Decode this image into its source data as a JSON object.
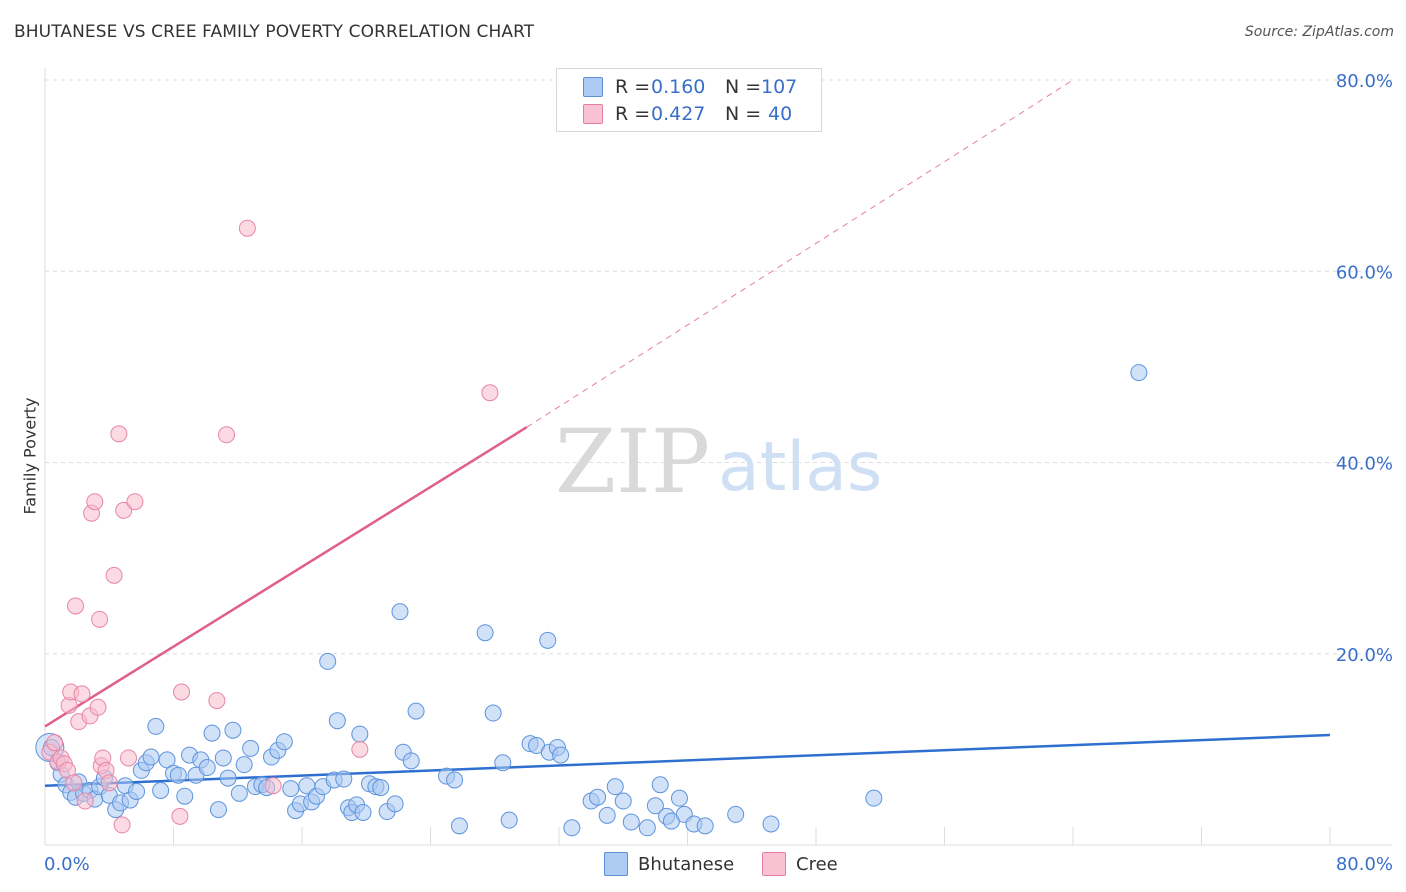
{
  "title": "BHUTANESE VS CREE FAMILY POVERTY CORRELATION CHART",
  "source": "Source: ZipAtlas.com",
  "watermark": {
    "zip": "ZIP",
    "atlas": "atlas"
  },
  "legend": {
    "rows": [
      {
        "r_label": "R =",
        "r_value": "0.160",
        "n_label": "N =",
        "n_value": "107",
        "color": "#aecbf3",
        "border": "#5b8fd6"
      },
      {
        "r_label": "R =",
        "r_value": "0.427",
        "n_label": "N =",
        "n_value": "40",
        "color": "#f8c2d2",
        "border": "#e47e9f"
      }
    ]
  },
  "bottom_legend": {
    "items": [
      "Bhutanese",
      "Cree"
    ]
  },
  "colors": {
    "bhutanese_fill": "#a9c8f2",
    "bhutanese_stroke": "#5e94dd",
    "bhutanese_line": "#2f6fd0",
    "cree_fill": "#f7bccd",
    "cree_stroke": "#e786a6",
    "cree_line": "#e0608a",
    "axis_text": "#3a6fc9",
    "grid": "#dddddd"
  },
  "chart_data": {
    "type": "scatter",
    "title": "BHUTANESE VS CREE FAMILY POVERTY CORRELATION CHART",
    "xlabel": "",
    "ylabel": "Family Poverty",
    "xlim": [
      0,
      80
    ],
    "ylim": [
      0,
      80
    ],
    "grid": true,
    "legend_position": "top-center",
    "x_tick_labels": [
      "0.0%",
      "80.0%"
    ],
    "y_tick_labels": [
      "20.0%",
      "40.0%",
      "60.0%",
      "80.0%"
    ],
    "y_ticks": [
      20,
      40,
      60,
      80
    ],
    "series": [
      {
        "name": "Bhutanese",
        "r": 0.16,
        "n": 107,
        "trend": {
          "x": [
            0,
            80
          ],
          "y": [
            6.2,
            11.5
          ]
        },
        "points": [
          [
            0.4,
            10.2
          ],
          [
            0.8,
            8.6
          ],
          [
            1.0,
            7.4
          ],
          [
            1.3,
            6.3
          ],
          [
            1.6,
            5.5
          ],
          [
            1.9,
            5.0
          ],
          [
            2.1,
            6.6
          ],
          [
            2.4,
            5.4
          ],
          [
            2.8,
            5.7
          ],
          [
            3.1,
            4.8
          ],
          [
            3.4,
            6.1
          ],
          [
            3.7,
            7.0
          ],
          [
            4.0,
            5.2
          ],
          [
            4.4,
            3.7
          ],
          [
            4.7,
            4.4
          ],
          [
            5.0,
            6.2
          ],
          [
            5.3,
            4.7
          ],
          [
            5.7,
            5.6
          ],
          [
            6.0,
            7.8
          ],
          [
            6.3,
            8.6
          ],
          [
            6.6,
            9.2
          ],
          [
            6.9,
            12.4
          ],
          [
            7.2,
            5.7
          ],
          [
            7.6,
            8.9
          ],
          [
            8.0,
            7.5
          ],
          [
            8.3,
            7.3
          ],
          [
            8.7,
            5.1
          ],
          [
            9.0,
            9.4
          ],
          [
            9.4,
            7.3
          ],
          [
            9.7,
            8.9
          ],
          [
            10.1,
            8.1
          ],
          [
            10.4,
            11.7
          ],
          [
            10.8,
            3.7
          ],
          [
            11.1,
            9.1
          ],
          [
            11.4,
            7.0
          ],
          [
            11.7,
            12.0
          ],
          [
            12.1,
            5.4
          ],
          [
            12.4,
            8.4
          ],
          [
            12.8,
            10.1
          ],
          [
            13.1,
            6.1
          ],
          [
            13.5,
            6.3
          ],
          [
            13.8,
            6.0
          ],
          [
            14.1,
            9.2
          ],
          [
            14.5,
            9.9
          ],
          [
            14.9,
            10.8
          ],
          [
            15.3,
            5.9
          ],
          [
            15.6,
            3.6
          ],
          [
            15.9,
            4.3
          ],
          [
            16.3,
            6.2
          ],
          [
            16.6,
            4.5
          ],
          [
            16.9,
            5.1
          ],
          [
            17.3,
            6.1
          ],
          [
            17.6,
            19.2
          ],
          [
            18.0,
            6.8
          ],
          [
            18.2,
            13.0
          ],
          [
            18.6,
            6.9
          ],
          [
            18.9,
            3.9
          ],
          [
            19.1,
            3.4
          ],
          [
            19.4,
            4.2
          ],
          [
            19.6,
            11.6
          ],
          [
            19.8,
            3.4
          ],
          [
            20.2,
            6.4
          ],
          [
            20.6,
            6.1
          ],
          [
            20.9,
            6.0
          ],
          [
            21.3,
            3.5
          ],
          [
            21.8,
            4.3
          ],
          [
            22.1,
            24.4
          ],
          [
            22.3,
            9.7
          ],
          [
            22.8,
            8.8
          ],
          [
            23.1,
            14.0
          ],
          [
            25.0,
            7.2
          ],
          [
            25.5,
            6.8
          ],
          [
            25.8,
            2.0
          ],
          [
            27.4,
            22.2
          ],
          [
            27.9,
            13.8
          ],
          [
            28.5,
            8.6
          ],
          [
            28.9,
            2.6
          ],
          [
            30.2,
            10.6
          ],
          [
            30.6,
            10.4
          ],
          [
            31.3,
            21.4
          ],
          [
            31.4,
            9.7
          ],
          [
            31.9,
            10.2
          ],
          [
            32.1,
            9.4
          ],
          [
            32.8,
            1.8
          ],
          [
            34.0,
            4.6
          ],
          [
            34.4,
            5.0
          ],
          [
            35.0,
            3.1
          ],
          [
            35.5,
            6.1
          ],
          [
            36.0,
            4.6
          ],
          [
            36.5,
            2.4
          ],
          [
            37.5,
            1.8
          ],
          [
            38.0,
            4.1
          ],
          [
            38.3,
            6.3
          ],
          [
            38.7,
            3.0
          ],
          [
            39.0,
            2.5
          ],
          [
            39.5,
            4.9
          ],
          [
            39.8,
            3.2
          ],
          [
            40.4,
            2.2
          ],
          [
            41.1,
            2.0
          ],
          [
            43.0,
            3.2
          ],
          [
            45.2,
            2.2
          ],
          [
            51.6,
            4.9
          ],
          [
            68.1,
            49.4
          ]
        ]
      },
      {
        "name": "Cree",
        "r": 0.427,
        "n": 40,
        "trend": {
          "x": [
            0,
            30
          ],
          "y": [
            12.4,
            43.7
          ]
        },
        "trend_dashed": {
          "x": [
            30,
            64
          ],
          "y": [
            43.7,
            80.0
          ]
        },
        "points": [
          [
            0.3,
            9.7
          ],
          [
            0.6,
            10.7
          ],
          [
            0.8,
            8.7
          ],
          [
            1.0,
            9.1
          ],
          [
            1.2,
            8.5
          ],
          [
            1.4,
            7.8
          ],
          [
            1.5,
            14.6
          ],
          [
            1.6,
            16.0
          ],
          [
            1.8,
            6.5
          ],
          [
            1.9,
            25.0
          ],
          [
            2.1,
            12.9
          ],
          [
            2.3,
            15.8
          ],
          [
            2.5,
            4.6
          ],
          [
            2.8,
            13.5
          ],
          [
            2.9,
            34.7
          ],
          [
            3.1,
            35.9
          ],
          [
            3.3,
            14.4
          ],
          [
            3.4,
            23.6
          ],
          [
            3.5,
            8.3
          ],
          [
            3.6,
            9.1
          ],
          [
            3.8,
            7.8
          ],
          [
            4.0,
            6.5
          ],
          [
            4.3,
            28.2
          ],
          [
            4.6,
            43.0
          ],
          [
            4.8,
            2.1
          ],
          [
            4.9,
            35.0
          ],
          [
            5.2,
            9.1
          ],
          [
            5.6,
            35.9
          ],
          [
            8.5,
            16.0
          ],
          [
            8.4,
            3.0
          ],
          [
            10.7,
            15.1
          ],
          [
            11.3,
            42.9
          ],
          [
            12.6,
            64.5
          ],
          [
            14.2,
            6.2
          ],
          [
            19.6,
            10.0
          ],
          [
            27.7,
            47.3
          ]
        ]
      }
    ]
  }
}
